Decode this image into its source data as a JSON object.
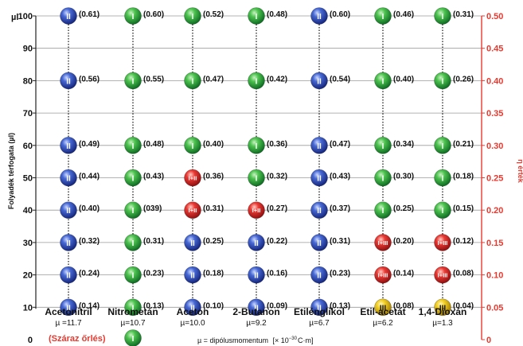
{
  "chart_data": {
    "type": "scatter",
    "left_axis": {
      "unit_label": "µl",
      "label": "Folyadék térfogata (µl)",
      "ticks": [
        0,
        10,
        20,
        30,
        40,
        50,
        60,
        70,
        80,
        90,
        100
      ],
      "ylim": [
        0,
        100
      ]
    },
    "right_axis": {
      "label": "η érték",
      "ticks": [
        "0",
        "0.05",
        "0.10",
        "0.15",
        "0.20",
        "0.25",
        "0.30",
        "0.35",
        "0.40",
        "0.45",
        "0.50"
      ],
      "color": "#e8392f"
    },
    "levels": [
      10,
      20,
      30,
      40,
      50,
      60,
      80,
      100
    ],
    "colors": {
      "I": "#22a33a",
      "II": "#2f4fb8",
      "I+II": "#e02d2d",
      "I+III": "#e02d2d",
      "III": "#e8c21a",
      "grid": "#9a9a9a"
    },
    "solvents": [
      {
        "name": "Acetonitril",
        "mu": "µ =11.7",
        "points": [
          {
            "y": 10,
            "form": "II",
            "eta": "(0.14)"
          },
          {
            "y": 20,
            "form": "II",
            "eta": "(0.24)"
          },
          {
            "y": 30,
            "form": "II",
            "eta": "(0.32)"
          },
          {
            "y": 40,
            "form": "II",
            "eta": "(0.40)"
          },
          {
            "y": 50,
            "form": "II",
            "eta": "(0.44)"
          },
          {
            "y": 60,
            "form": "II",
            "eta": "(0.49)"
          },
          {
            "y": 80,
            "form": "II",
            "eta": "(0.56)"
          },
          {
            "y": 100,
            "form": "II",
            "eta": "(0.61)"
          }
        ]
      },
      {
        "name": "Nitrometán",
        "mu": "µ=10.7",
        "points": [
          {
            "y": 10,
            "form": "I",
            "eta": "(0.13)"
          },
          {
            "y": 20,
            "form": "I",
            "eta": "(0.23)"
          },
          {
            "y": 30,
            "form": "I",
            "eta": "(0.31)"
          },
          {
            "y": 40,
            "form": "I",
            "eta": "(039)"
          },
          {
            "y": 50,
            "form": "I",
            "eta": "(0.43)"
          },
          {
            "y": 60,
            "form": "I",
            "eta": "(0.48)"
          },
          {
            "y": 80,
            "form": "I",
            "eta": "(0.55)"
          },
          {
            "y": 100,
            "form": "I",
            "eta": "(0.60)"
          }
        ]
      },
      {
        "name": "Aceton",
        "mu": "µ=10.0",
        "points": [
          {
            "y": 10,
            "form": "II",
            "eta": "(0.10)"
          },
          {
            "y": 20,
            "form": "II",
            "eta": "(0.18)"
          },
          {
            "y": 30,
            "form": "II",
            "eta": "(0.25)"
          },
          {
            "y": 40,
            "form": "I+II",
            "eta": "(0.31)"
          },
          {
            "y": 50,
            "form": "I+II",
            "eta": "(0.36)"
          },
          {
            "y": 60,
            "form": "I",
            "eta": "(0.40)"
          },
          {
            "y": 80,
            "form": "I",
            "eta": "(0.47)"
          },
          {
            "y": 100,
            "form": "I",
            "eta": "(0.52)"
          }
        ]
      },
      {
        "name": "2-Butanon",
        "mu": "µ=9.2",
        "points": [
          {
            "y": 10,
            "form": "II",
            "eta": "(0.09)"
          },
          {
            "y": 20,
            "form": "II",
            "eta": "(0.16)"
          },
          {
            "y": 30,
            "form": "II",
            "eta": "(0.22)"
          },
          {
            "y": 40,
            "form": "I+II",
            "eta": "(0.27)"
          },
          {
            "y": 50,
            "form": "I",
            "eta": "(0.32)"
          },
          {
            "y": 60,
            "form": "I",
            "eta": "(0.36)"
          },
          {
            "y": 80,
            "form": "I",
            "eta": "(0.42)"
          },
          {
            "y": 100,
            "form": "I",
            "eta": "(0.48)"
          }
        ]
      },
      {
        "name": "Etilénglikol",
        "mu": "µ=6.7",
        "points": [
          {
            "y": 10,
            "form": "II",
            "eta": "(0.13)"
          },
          {
            "y": 20,
            "form": "II",
            "eta": "(0.23)"
          },
          {
            "y": 30,
            "form": "II",
            "eta": "(0.31)"
          },
          {
            "y": 40,
            "form": "II",
            "eta": "(0.37)"
          },
          {
            "y": 50,
            "form": "II",
            "eta": "(0.43)"
          },
          {
            "y": 60,
            "form": "II",
            "eta": "(0.47)"
          },
          {
            "y": 80,
            "form": "II",
            "eta": "(0.54)"
          },
          {
            "y": 100,
            "form": "II",
            "eta": "(0.60)"
          }
        ]
      },
      {
        "name": "Etil-acetát",
        "mu": "µ=6.2",
        "points": [
          {
            "y": 10,
            "form": "III",
            "eta": "(0.08)"
          },
          {
            "y": 20,
            "form": "I+III",
            "eta": "(0.14)"
          },
          {
            "y": 30,
            "form": "I+III",
            "eta": "(0.20)"
          },
          {
            "y": 40,
            "form": "I",
            "eta": "(0.25)"
          },
          {
            "y": 50,
            "form": "I",
            "eta": "(0.30)"
          },
          {
            "y": 60,
            "form": "I",
            "eta": "(0.34)"
          },
          {
            "y": 80,
            "form": "I",
            "eta": "(0.40)"
          },
          {
            "y": 100,
            "form": "I",
            "eta": "(0.46)"
          }
        ]
      },
      {
        "name": "1,4-Dioxán",
        "mu": "µ=1.3",
        "points": [
          {
            "y": 10,
            "form": "III",
            "eta": "(0.04)"
          },
          {
            "y": 20,
            "form": "I+III",
            "eta": "(0.08)"
          },
          {
            "y": 30,
            "form": "I+III",
            "eta": "(0.12)"
          },
          {
            "y": 40,
            "form": "I",
            "eta": "(0.15)"
          },
          {
            "y": 50,
            "form": "I",
            "eta": "(0.18)"
          },
          {
            "y": 60,
            "form": "I",
            "eta": "(0.21)"
          },
          {
            "y": 80,
            "form": "I",
            "eta": "(0.26)"
          },
          {
            "y": 100,
            "form": "I",
            "eta": "(0.31)"
          }
        ]
      }
    ],
    "dry_grinding": {
      "label": "(Száraz őrlés)",
      "form": "I"
    },
    "mu_legend": {
      "prefix": "µ = dipólusmomentum",
      "unit_open": "[× 10",
      "unit_exp": "−30",
      "unit_close": "C·m]"
    }
  }
}
